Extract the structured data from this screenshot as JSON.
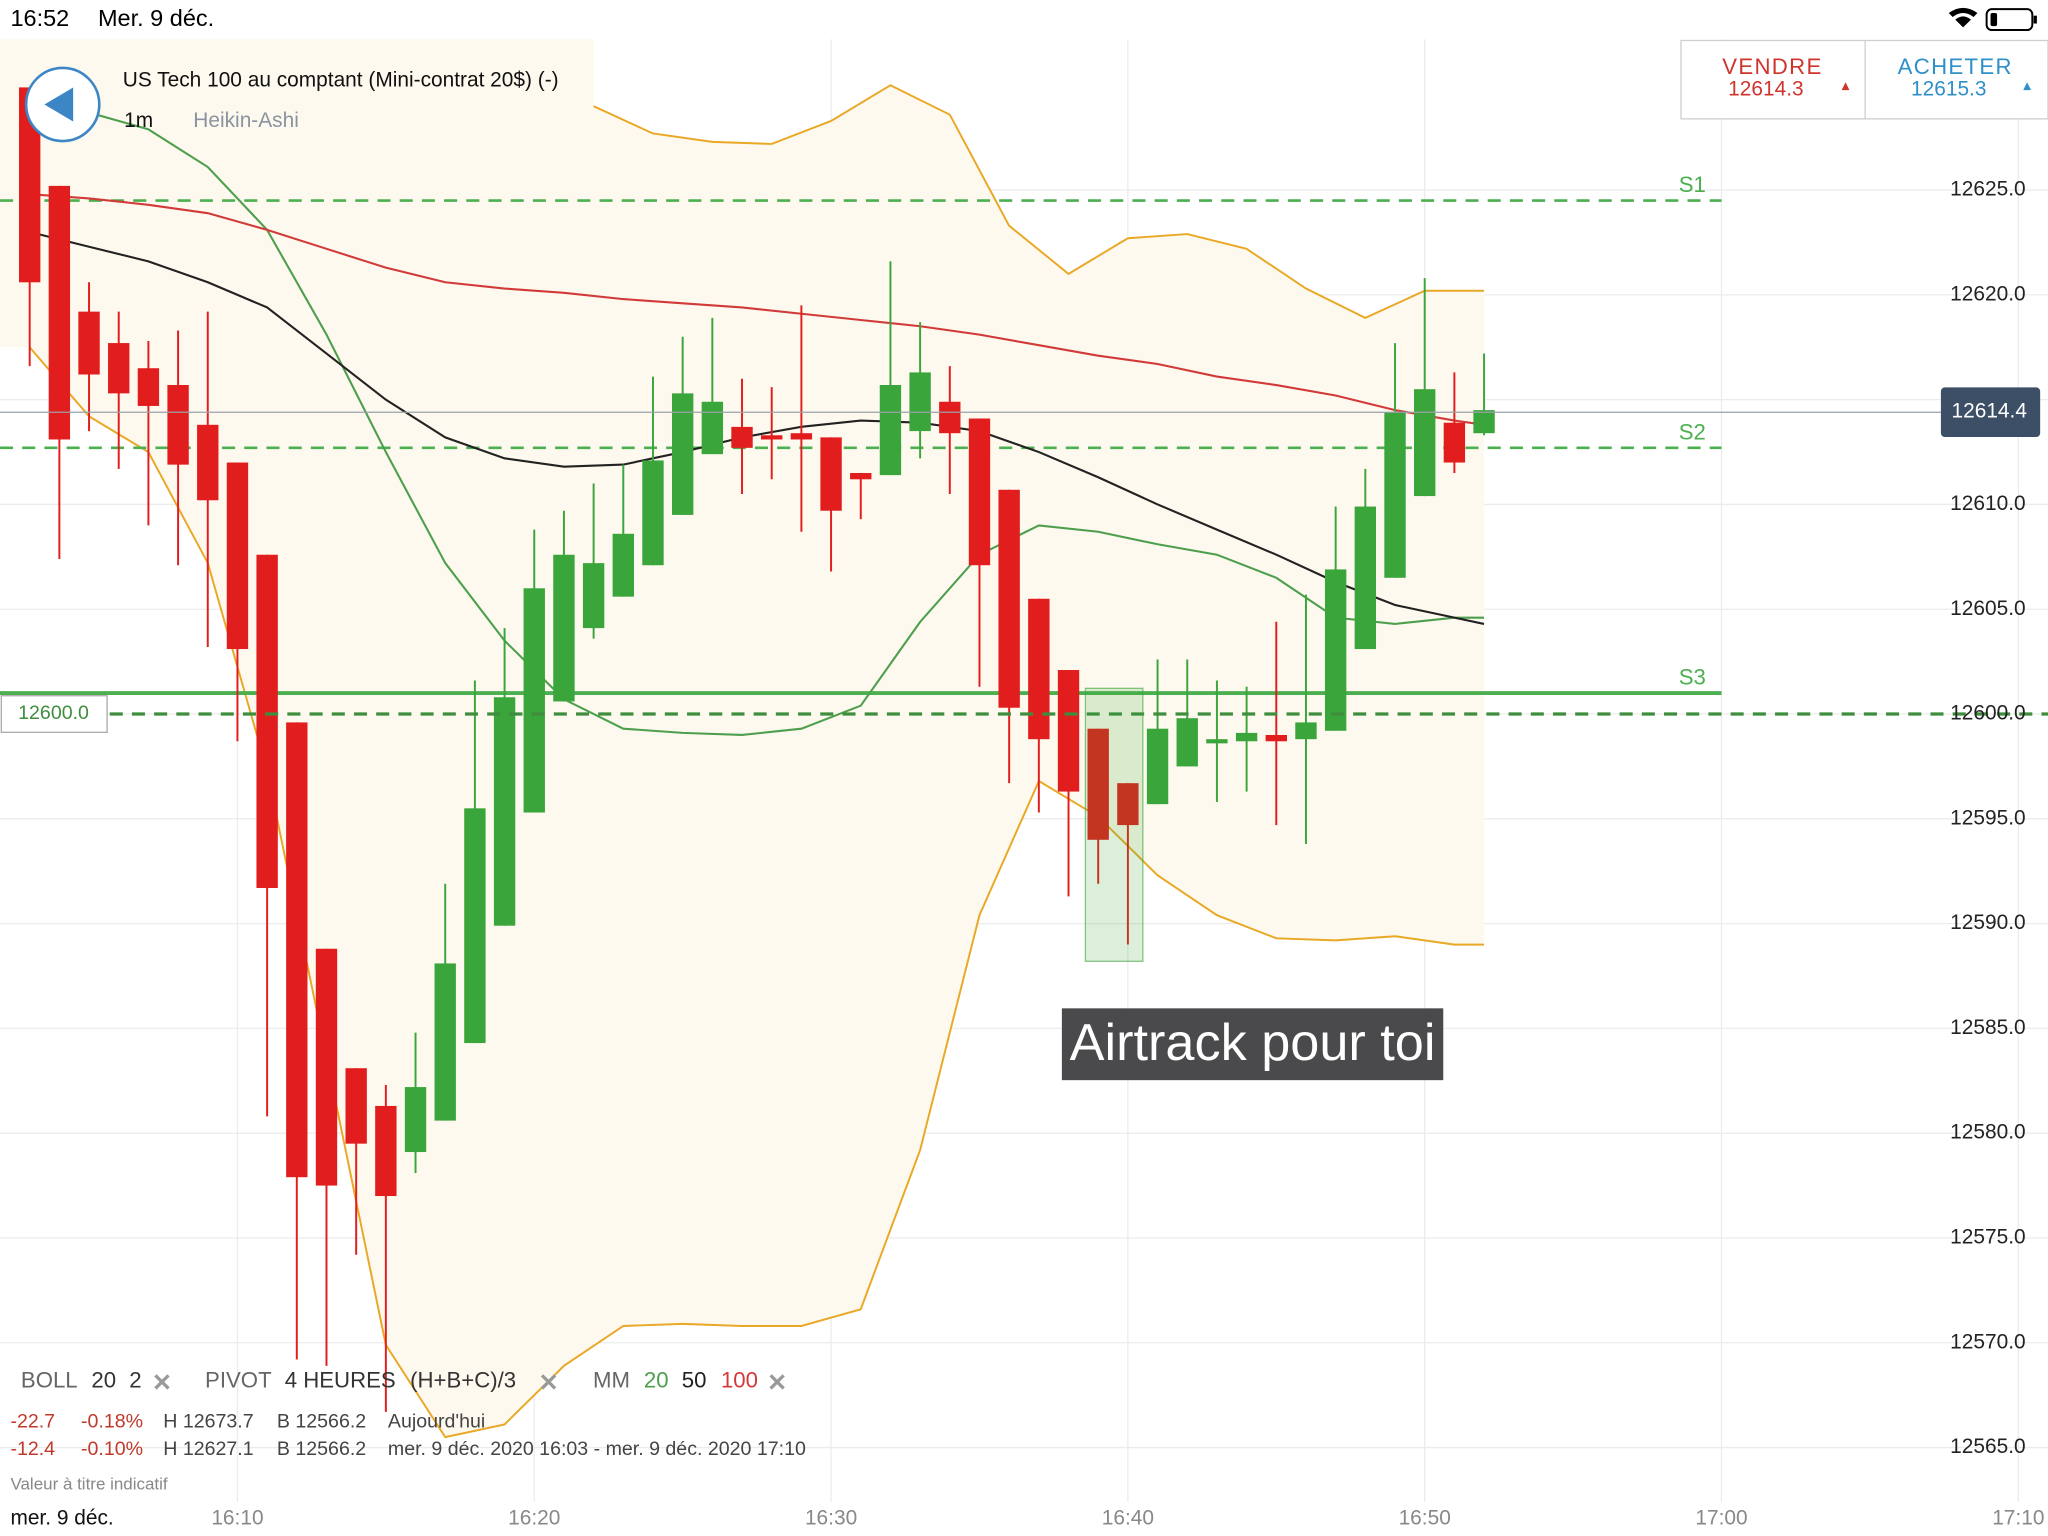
{
  "chart_data": {
    "type": "candlestick",
    "x": [
      "16:03",
      "16:04",
      "16:05",
      "16:06",
      "16:07",
      "16:08",
      "16:09",
      "16:10",
      "16:11",
      "16:12",
      "16:13",
      "16:14",
      "16:15",
      "16:16",
      "16:17",
      "16:18",
      "16:19",
      "16:20",
      "16:21",
      "16:22",
      "16:23",
      "16:24",
      "16:25",
      "16:26",
      "16:27",
      "16:28",
      "16:29",
      "16:30",
      "16:31",
      "16:32",
      "16:33",
      "16:34",
      "16:35",
      "16:36",
      "16:37",
      "16:38",
      "16:39",
      "16:40",
      "16:41",
      "16:42",
      "16:43",
      "16:44",
      "16:45",
      "16:46",
      "16:47",
      "16:48",
      "16:49",
      "16:50",
      "16:51",
      "16:52"
    ],
    "open": [
      12629.9,
      12625.2,
      12619.2,
      12617.7,
      12616.5,
      12615.7,
      12613.8,
      12612.0,
      12607.6,
      12599.6,
      12588.8,
      12583.1,
      12581.3,
      12579.1,
      12580.6,
      12584.3,
      12589.9,
      12595.3,
      12600.6,
      12604.1,
      12605.6,
      12607.1,
      12609.5,
      12612.4,
      12613.7,
      12613.3,
      12613.4,
      12613.2,
      12611.5,
      12611.4,
      12613.5,
      12614.9,
      12614.1,
      12610.7,
      12605.5,
      12602.1,
      12599.3,
      12596.7,
      12595.7,
      12597.5,
      12598.6,
      12598.7,
      12599.0,
      12598.8,
      12599.2,
      12603.1,
      12606.5,
      12610.4,
      12613.9,
      12613.4
    ],
    "high": [
      12629.9,
      12625.2,
      12620.6,
      12619.2,
      12617.8,
      12618.3,
      12619.2,
      12612.0,
      12607.6,
      12599.6,
      12588.8,
      12583.1,
      12582.3,
      12584.8,
      12591.9,
      12601.6,
      12604.1,
      12608.8,
      12609.7,
      12611.0,
      12611.9,
      12616.1,
      12618.0,
      12618.9,
      12616.0,
      12615.6,
      12619.5,
      12613.2,
      12611.5,
      12621.6,
      12618.7,
      12616.6,
      12614.1,
      12610.7,
      12605.5,
      12602.1,
      12599.3,
      12596.7,
      12602.6,
      12602.6,
      12601.6,
      12601.3,
      12604.4,
      12605.7,
      12609.9,
      12611.7,
      12617.7,
      12620.8,
      12616.3,
      12617.2
    ],
    "low": [
      12616.6,
      12607.4,
      12613.5,
      12611.7,
      12609.0,
      12607.1,
      12603.2,
      12598.7,
      12580.8,
      12569.2,
      12568.9,
      12574.2,
      12566.7,
      12578.1,
      12580.6,
      12584.3,
      12589.9,
      12595.3,
      12600.6,
      12603.6,
      12605.6,
      12607.1,
      12609.5,
      12612.4,
      12610.5,
      12611.2,
      12608.7,
      12606.8,
      12609.3,
      12611.4,
      12612.2,
      12610.5,
      12601.3,
      12596.7,
      12595.3,
      12591.3,
      12591.9,
      12589.0,
      12595.7,
      12597.5,
      12595.8,
      12596.3,
      12594.7,
      12593.8,
      12599.2,
      12603.1,
      12606.5,
      12610.4,
      12611.5,
      12613.3
    ],
    "close": [
      12620.6,
      12613.1,
      12616.2,
      12615.3,
      12614.7,
      12611.9,
      12610.2,
      12603.1,
      12591.7,
      12577.9,
      12577.5,
      12579.5,
      12577.0,
      12582.2,
      12588.1,
      12595.5,
      12600.8,
      12606.0,
      12607.6,
      12607.2,
      12608.6,
      12612.1,
      12615.3,
      12614.9,
      12612.7,
      12613.1,
      12613.1,
      12609.7,
      12611.2,
      12615.7,
      12616.3,
      12613.4,
      12607.1,
      12600.3,
      12598.8,
      12596.3,
      12594.0,
      12594.7,
      12599.3,
      12599.8,
      12598.8,
      12599.1,
      12598.7,
      12599.6,
      12606.9,
      12609.9,
      12614.4,
      12615.5,
      12612.0,
      12614.5
    ],
    "up_color": "#3aa53a",
    "down_color": "#e21d1d",
    "xlim": [
      "16:02",
      "17:11"
    ],
    "xticks": [
      "16:10",
      "16:20",
      "16:30",
      "16:40",
      "16:50",
      "17:00",
      "17:10"
    ],
    "ylim": [
      12562.4,
      12632.2
    ],
    "yticks": [
      {
        "value": 12625,
        "label": "12625.0"
      },
      {
        "value": 12620,
        "label": "12620.0"
      },
      {
        "value": 12615,
        "label": "12615.0"
      },
      {
        "value": 12610,
        "label": "12610.0"
      },
      {
        "value": 12605,
        "label": "12605.0"
      },
      {
        "value": 12600,
        "label": "12600.0"
      },
      {
        "value": 12595,
        "label": "12595.0"
      },
      {
        "value": 12590,
        "label": "12590.0"
      },
      {
        "value": 12585,
        "label": "12585.0"
      },
      {
        "value": 12580,
        "label": "12580.0"
      },
      {
        "value": 12575,
        "label": "12575.0"
      },
      {
        "value": 12570,
        "label": "12570.0"
      },
      {
        "value": 12565,
        "label": "12565.0"
      }
    ],
    "grid": true,
    "bands": {
      "color": "#e9a825",
      "fill": "#fdf9ee",
      "upper": {
        "x": [
          "16:22",
          "16:24",
          "16:26",
          "16:28",
          "16:30",
          "16:32",
          "16:34",
          "16:36",
          "16:38",
          "16:40",
          "16:42",
          "16:44",
          "16:46",
          "16:48",
          "16:50",
          "16:52"
        ],
        "values": [
          12629.0,
          12627.7,
          12627.3,
          12627.2,
          12628.3,
          12630.0,
          12628.6,
          12623.3,
          12621.0,
          12622.7,
          12622.9,
          12622.2,
          12620.3,
          12618.9,
          12620.2,
          12620.2
        ]
      },
      "lower": {
        "x": [
          "16:03",
          "16:05",
          "16:07",
          "16:09",
          "16:11",
          "16:13",
          "16:15",
          "16:17",
          "16:19",
          "16:21",
          "16:23",
          "16:25",
          "16:27",
          "16:29",
          "16:31",
          "16:33",
          "16:35",
          "16:37",
          "16:39",
          "16:41",
          "16:43",
          "16:45",
          "16:47",
          "16:49",
          "16:51",
          "16:52"
        ],
        "values": [
          12617.5,
          12614.2,
          12612.5,
          12607.2,
          12597.3,
          12583.6,
          12569.9,
          12565.5,
          12566.1,
          12568.9,
          12570.8,
          12570.9,
          12570.8,
          12570.8,
          12571.6,
          12579.2,
          12590.4,
          12596.8,
          12595.1,
          12592.3,
          12590.4,
          12589.3,
          12589.2,
          12589.4,
          12589.0,
          12589.0
        ]
      }
    },
    "lines": [
      {
        "name": "20",
        "color": "#4d9f4d",
        "x": [
          "16:03",
          "16:05",
          "16:07",
          "16:09",
          "16:11",
          "16:13",
          "16:15",
          "16:17",
          "16:19",
          "16:21",
          "16:23",
          "16:25",
          "16:27",
          "16:29",
          "16:31",
          "16:33",
          "16:35",
          "16:37",
          "16:39",
          "16:41",
          "16:43",
          "16:45",
          "16:47",
          "16:49",
          "16:51",
          "16:52"
        ],
        "values": [
          12628.9,
          12628.7,
          12627.9,
          12626.1,
          12623.1,
          12618.1,
          12612.5,
          12607.2,
          12603.5,
          12600.7,
          12599.3,
          12599.1,
          12599.0,
          12599.3,
          12600.4,
          12604.4,
          12607.6,
          12609.0,
          12608.7,
          12608.1,
          12607.6,
          12606.5,
          12604.6,
          12604.3,
          12604.6,
          12604.6
        ]
      },
      {
        "name": "50",
        "color": "#222222",
        "x": [
          "16:03",
          "16:05",
          "16:07",
          "16:09",
          "16:11",
          "16:13",
          "16:15",
          "16:17",
          "16:19",
          "16:21",
          "16:23",
          "16:25",
          "16:27",
          "16:29",
          "16:31",
          "16:33",
          "16:35",
          "16:37",
          "16:39",
          "16:41",
          "16:43",
          "16:45",
          "16:47",
          "16:49",
          "16:51",
          "16:52"
        ],
        "values": [
          12623.0,
          12622.3,
          12621.6,
          12620.6,
          12619.4,
          12617.2,
          12615.0,
          12613.2,
          12612.2,
          12611.8,
          12611.9,
          12612.5,
          12613.2,
          12613.7,
          12614.0,
          12613.9,
          12613.5,
          12612.5,
          12611.3,
          12610.0,
          12608.8,
          12607.6,
          12606.3,
          12605.2,
          12604.6,
          12604.3
        ]
      },
      {
        "name": "100",
        "color": "#d23a3a",
        "x": [
          "16:03",
          "16:05",
          "16:07",
          "16:09",
          "16:11",
          "16:13",
          "16:15",
          "16:17",
          "16:19",
          "16:21",
          "16:23",
          "16:25",
          "16:27",
          "16:29",
          "16:31",
          "16:33",
          "16:35",
          "16:37",
          "16:39",
          "16:41",
          "16:43",
          "16:45",
          "16:47",
          "16:49",
          "16:51",
          "16:52"
        ],
        "values": [
          12624.8,
          12624.6,
          12624.3,
          12623.9,
          12623.1,
          12622.2,
          12621.3,
          12620.6,
          12620.3,
          12620.1,
          12619.8,
          12619.6,
          12619.4,
          12619.1,
          12618.8,
          12618.5,
          12618.1,
          12617.6,
          12617.1,
          12616.7,
          12616.1,
          12615.7,
          12615.2,
          12614.5,
          12614.0,
          12613.8
        ]
      }
    ],
    "pivot_color": "#4caf50",
    "pivots": [
      {
        "name": "S1",
        "value": 12624.5,
        "style": "dashed"
      },
      {
        "name": "S2",
        "value": 12612.7,
        "style": "dashed"
      },
      {
        "name": "S3",
        "value": 12601.0,
        "style": "solid"
      }
    ],
    "alert": {
      "value": 12600,
      "label": "12600.0"
    },
    "last_price": {
      "value": 12614.4
    },
    "annotation": "Airtrack pour toi"
  },
  "ui": {
    "status": {
      "time": "16:52",
      "date": "Mer. 9 déc."
    },
    "instrument": {
      "title": "US Tech 100 au comptant (Mini-contrat 20$) (-)",
      "timeframe": "1m",
      "style": "Heikin-Ashi"
    },
    "sell": {
      "label": "VENDRE",
      "price": 12614.3
    },
    "buy": {
      "label": "ACHETER",
      "price": 12615.3
    },
    "indicators": {
      "boll": [
        "BOLL",
        "20",
        "2"
      ],
      "pivot": [
        "PIVOT",
        "4 HEURES",
        "(H+B+C)/3"
      ],
      "mm": "MM"
    },
    "stats": [
      [
        "-22.7",
        "-0.18%",
        "H 12673.7",
        "B 12566.2",
        "Aujourd'hui"
      ],
      [
        "-12.4",
        "-0.10%",
        "H 12627.1",
        "B 12566.2",
        "mer. 9 déc. 2020 16:03 - mer. 9 déc. 2020 17:10"
      ]
    ],
    "disclaimer": "Valeur à titre indicatif",
    "date_label": "mer. 9 déc."
  }
}
